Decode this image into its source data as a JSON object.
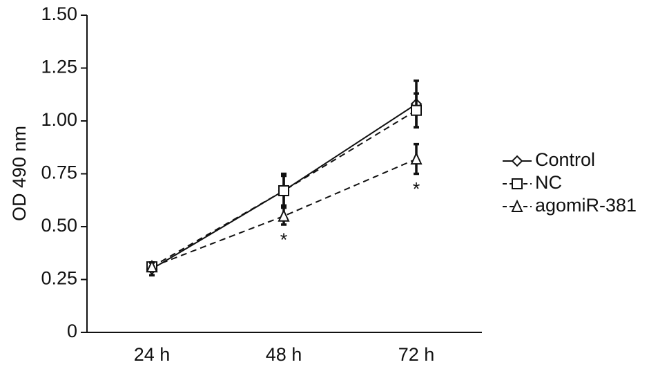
{
  "chart_data": {
    "type": "line",
    "y_label": "OD 490 nm",
    "categories": [
      "24 h",
      "48 h",
      "72 h"
    ],
    "ylim": [
      0,
      1.5
    ],
    "yticks": [
      0,
      0.25,
      {
        "value": 0.5,
        "label": "0.50"
      },
      0.75,
      {
        "value": 1,
        "label": "1.00"
      },
      1.25,
      {
        "value": 1.5,
        "label": "1.50"
      }
    ],
    "series": [
      {
        "name": "Control",
        "color": "#111111",
        "marker": "diamond",
        "dash": false,
        "values": [
          0.3,
          0.67,
          1.08
        ],
        "errors": [
          0.03,
          0.08,
          0.11
        ]
      },
      {
        "name": "NC",
        "color": "#111111",
        "marker": "square",
        "dash": true,
        "values": [
          0.31,
          0.67,
          1.05
        ],
        "errors": [
          0.02,
          0.07,
          0.08
        ]
      },
      {
        "name": "agomiR-381",
        "color": "#111111",
        "marker": "triangle",
        "dash": true,
        "values": [
          0.31,
          0.55,
          0.82
        ],
        "errors": [
          0.02,
          0.04,
          0.07
        ]
      }
    ],
    "annotations": [
      {
        "text": "*",
        "series": 2,
        "index": 1
      },
      {
        "text": "*",
        "series": 2,
        "index": 2
      }
    ],
    "legend": "right"
  }
}
